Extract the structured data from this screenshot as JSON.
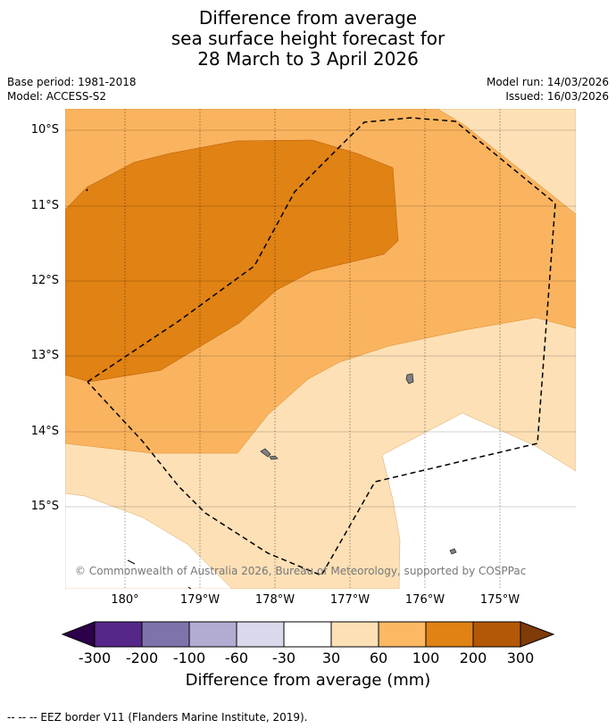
{
  "header": {
    "title_line1": "Difference from average",
    "title_line2": "sea surface height forecast for",
    "title_line3": "28 March to 3 April 2026",
    "base_period": "Base period: 1981-2018",
    "model": "Model: ACCESS-S2",
    "model_run": "Model run: 14/03/2026",
    "issued": "Issued: 16/03/2026"
  },
  "map": {
    "credit": "© Commonwealth of Australia 2026, Bureau of Meteorology, supported by COSPPac",
    "lat_labels": [
      "10°S",
      "11°S",
      "12°S",
      "13°S",
      "14°S",
      "15°S"
    ],
    "lon_labels": [
      "180°",
      "179°W",
      "178°W",
      "177°W",
      "176°W",
      "175°W"
    ],
    "colors": {
      "band_30_60": "#fde0b6",
      "band_60_100": "#fab45f",
      "band_100_200": "#e08214",
      "land": "#808080",
      "grid": "#000000"
    }
  },
  "colorbar": {
    "ticks": [
      "-300",
      "-200",
      "-100",
      "-60",
      "-30",
      "30",
      "60",
      "100",
      "200",
      "300"
    ],
    "colors": [
      "#2d004b",
      "#542788",
      "#8073ac",
      "#b2abd2",
      "#d8daeb",
      "#ffffff",
      "#fee0b6",
      "#fdb863",
      "#e08214",
      "#b35806",
      "#7f3b08"
    ],
    "label": "Difference from average (mm)"
  },
  "footnote": "--  --  -- EEZ border V11 (Flanders Marine Institute, 2019)."
}
